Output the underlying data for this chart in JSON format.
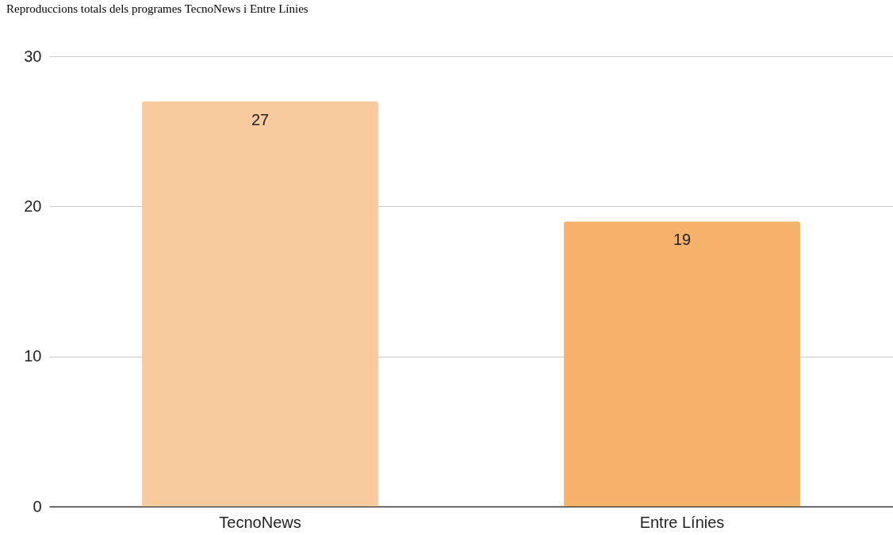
{
  "chart_data": {
    "type": "bar",
    "title": "Reproduccions totals dels programes TecnoNews i Entre Línies",
    "categories": [
      "TecnoNews",
      "Entre Línies"
    ],
    "values": [
      27,
      19
    ],
    "colors": [
      "#f8cb9e",
      "#f6b26b"
    ],
    "ylim": [
      0,
      30
    ],
    "yticks": [
      0,
      10,
      20,
      30
    ],
    "grid": "y",
    "data_labels": true,
    "legend": false
  }
}
